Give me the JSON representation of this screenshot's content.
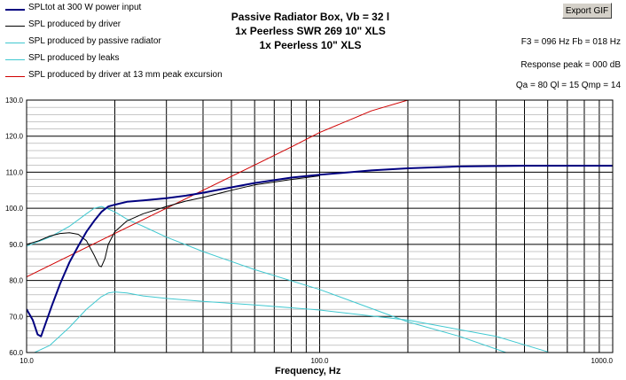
{
  "legend": [
    {
      "label": "SPLtot at 300 W power input",
      "color": "#000080"
    },
    {
      "label": "SPL produced by driver",
      "color": "#000000"
    },
    {
      "label": "SPL produced by passive radiator",
      "color": "#40c8d0"
    },
    {
      "label": "SPL produced by leaks",
      "color": "#40c8d0"
    },
    {
      "label": "SPL produced by driver at 13 mm peak excursion",
      "color": "#d00000"
    }
  ],
  "title": {
    "line1": "Passive Radiator Box, Vb = 32 l",
    "line2": "1x Peerless SWR 269 10\" XLS",
    "line3": "1x Peerless 10\" XLS"
  },
  "export_button": "Export GIF",
  "info": {
    "f3_fb": "F3 = 096 Hz  Fb = 018 Hz",
    "response_peak": "Response peak = 000 dB",
    "q_values": "Qa = 80  Ql = 15  Qmp = 14"
  },
  "chart_data": {
    "type": "line",
    "xlabel": "Frequency, Hz",
    "ylabel": "",
    "x_scale": "log",
    "xlim": [
      10,
      1000
    ],
    "ylim": [
      60,
      130
    ],
    "grid": true,
    "x_tick_labels": [
      "10.0",
      "100.0",
      "1000.0"
    ],
    "y_tick_labels": [
      "60.0",
      "70.0",
      "80.0",
      "90.0",
      "100.0",
      "110.0",
      "120.0",
      "130.0"
    ],
    "series": [
      {
        "name": "SPLtot at 300 W power input",
        "color": "#000080",
        "x": [
          10,
          10.5,
          10.9,
          11.2,
          11.6,
          12.2,
          13,
          14,
          15,
          16,
          17,
          18,
          19,
          20,
          22,
          25,
          30,
          35,
          40,
          50,
          60,
          70,
          80,
          100,
          150,
          200,
          300,
          500,
          700,
          1000
        ],
        "y": [
          72,
          69,
          65,
          64.5,
          68,
          73,
          79,
          85,
          89.5,
          93.5,
          96.5,
          99,
          100.5,
          101,
          101.8,
          102.2,
          102.8,
          103.5,
          104.3,
          105.8,
          107,
          107.8,
          108.5,
          109.3,
          110.5,
          111.1,
          111.6,
          111.8,
          111.8,
          111.8
        ]
      },
      {
        "name": "SPL produced by driver",
        "color": "#000000",
        "x": [
          10,
          11,
          12,
          13,
          14,
          15,
          16,
          17,
          17.7,
          18,
          18.5,
          19,
          20,
          22,
          25,
          30,
          35,
          40,
          50,
          60,
          80,
          100
        ],
        "y": [
          90,
          91,
          92.3,
          93,
          93.2,
          92.8,
          91,
          87,
          84,
          83.8,
          86,
          90,
          93.5,
          96.5,
          98.5,
          100.5,
          102,
          103,
          105,
          106.5,
          108,
          109
        ]
      },
      {
        "name": "SPL produced by passive radiator",
        "color": "#40c8d0",
        "x": [
          10,
          12,
          14,
          16,
          17,
          18,
          19,
          20,
          22,
          25,
          30,
          40,
          60,
          100,
          200,
          300,
          600
        ],
        "y": [
          89.5,
          92,
          95,
          98.5,
          100,
          100.5,
          99.8,
          99,
          97,
          95,
          92,
          88,
          83,
          77.5,
          68.5,
          64.5,
          56
        ]
      },
      {
        "name": "SPL produced by leaks",
        "color": "#40c8d0",
        "x": [
          10,
          12,
          14,
          16,
          18,
          19,
          20,
          22,
          25,
          30,
          40,
          60,
          100,
          200,
          400,
          600
        ],
        "y": [
          59,
          62,
          67,
          72,
          75.5,
          76.5,
          76.8,
          76.5,
          75.7,
          75,
          74.2,
          73.2,
          71.8,
          69,
          64.5,
          60.2
        ]
      },
      {
        "name": "SPL produced by driver at 13 mm peak excursion",
        "color": "#d00000",
        "x": [
          10,
          20,
          30,
          40,
          60,
          80,
          100,
          150,
          200
        ],
        "y": [
          81,
          93,
          100,
          105,
          112,
          117,
          121,
          127,
          130
        ]
      }
    ]
  }
}
